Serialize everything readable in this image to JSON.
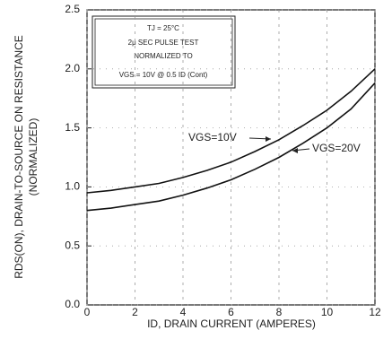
{
  "chart_data": {
    "type": "line",
    "y_label": "RDS(ON), DRAIN-TO-SOURCE ON RESISTANCE",
    "y_label_sub": "(NORMALIZED)",
    "x_label": "ID, DRAIN CURRENT (AMPERES)",
    "annotations": [
      "TJ = 25°C",
      "2μ SEC PULSE TEST",
      "NORMALIZED TO",
      "VGS = 10V @ 0.5 ID (Cont)"
    ],
    "x": [
      0,
      1,
      2,
      3,
      4,
      5,
      6,
      7,
      8,
      9,
      10,
      11,
      12
    ],
    "series": [
      {
        "name": "VGS=10V",
        "color": "#111111",
        "values": [
          0.95,
          0.97,
          1.0,
          1.03,
          1.08,
          1.14,
          1.21,
          1.3,
          1.4,
          1.52,
          1.65,
          1.81,
          2.0
        ]
      },
      {
        "name": "VGS=20V",
        "color": "#111111",
        "values": [
          0.8,
          0.82,
          0.85,
          0.88,
          0.93,
          0.99,
          1.06,
          1.15,
          1.25,
          1.37,
          1.5,
          1.66,
          1.88
        ]
      }
    ],
    "xlim": [
      0,
      12
    ],
    "xticks": [
      0,
      2,
      4,
      6,
      8,
      10,
      12
    ],
    "ylim": [
      0,
      2.5
    ],
    "yticks": [
      {
        "value": 0,
        "label": "0.0"
      },
      0.5,
      {
        "value": 1,
        "label": "1.0"
      },
      1.5,
      {
        "value": 2,
        "label": "2.0"
      },
      2.5
    ],
    "grid": true
  }
}
